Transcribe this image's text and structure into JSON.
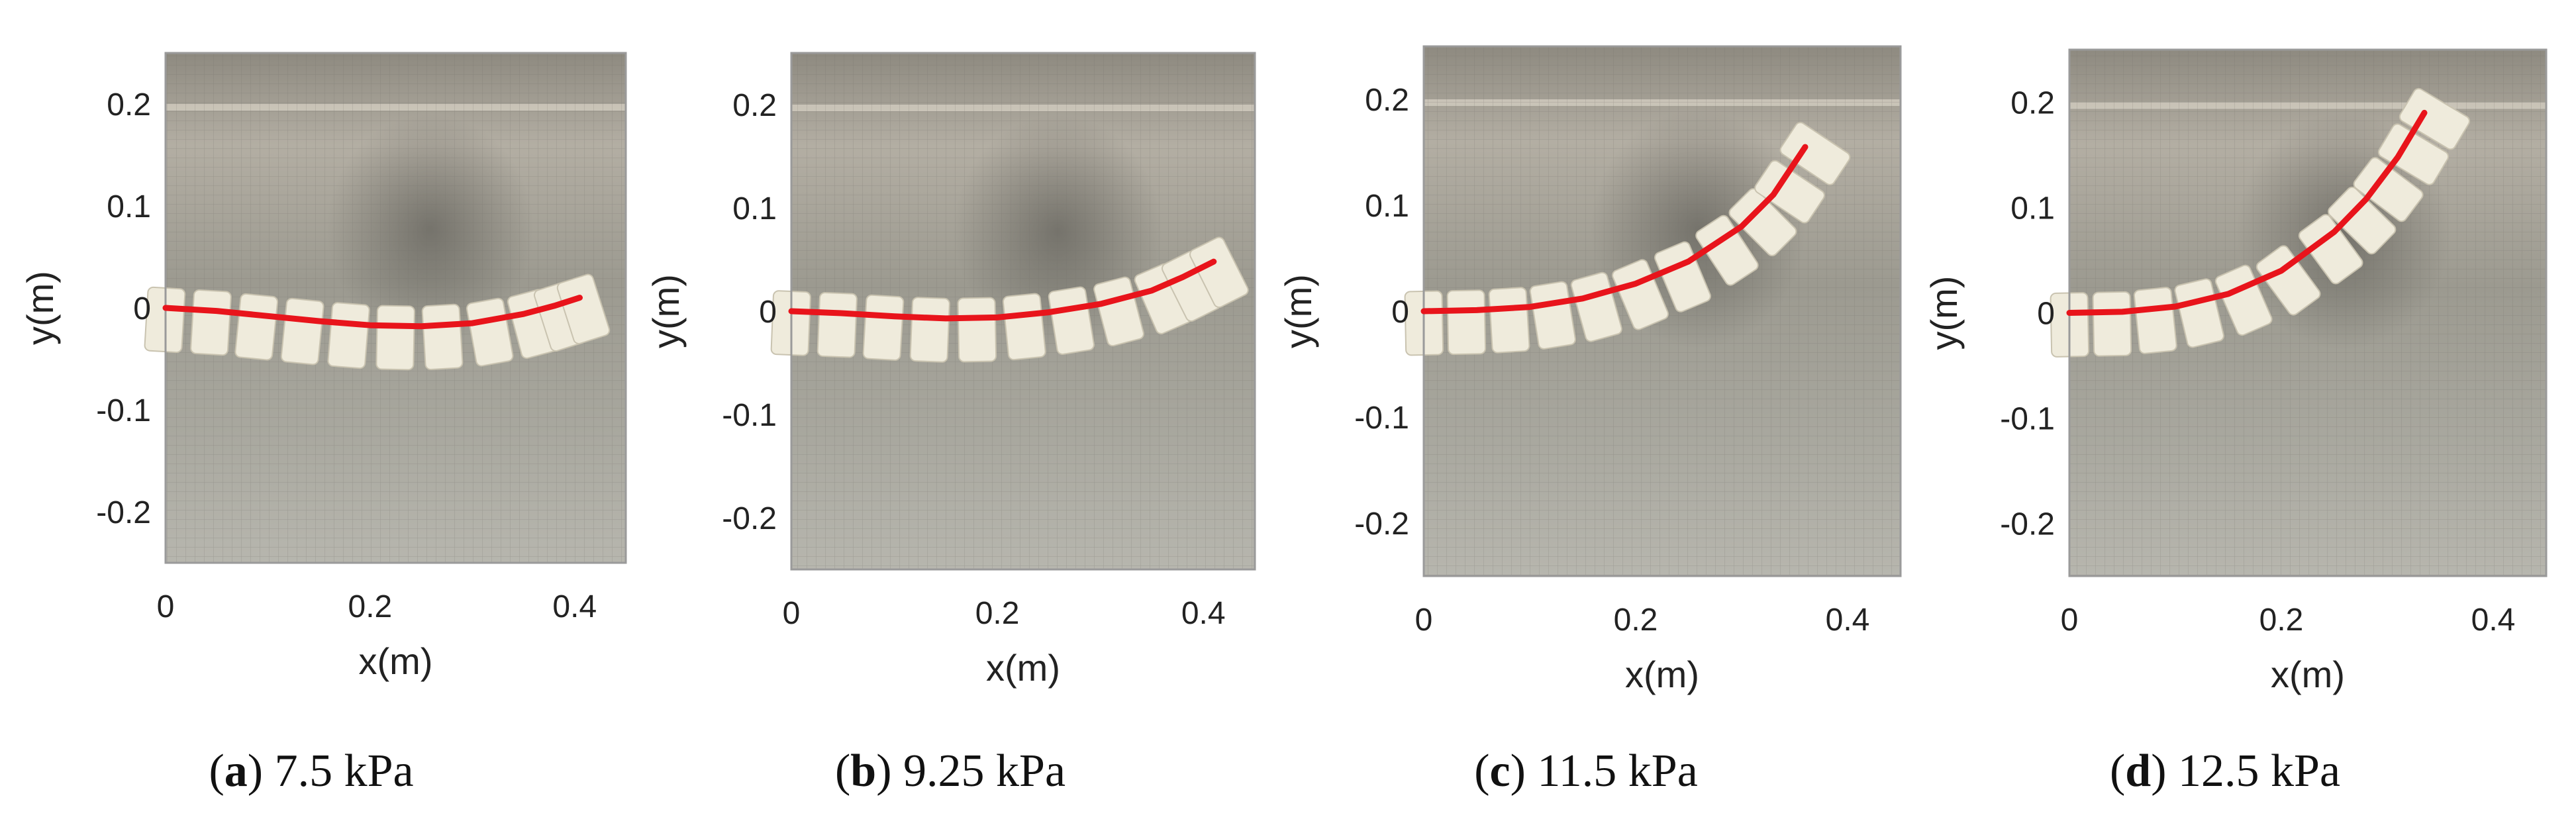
{
  "chart_data": [
    {
      "type": "line",
      "caption_letter": "a",
      "caption_text": "7.5 kPa",
      "xlabel": "x(m)",
      "ylabel": "y(m)",
      "xlim": [
        0,
        0.45
      ],
      "ylim": [
        -0.25,
        0.25
      ],
      "xticks": [
        "0",
        "0.2",
        "0.4"
      ],
      "yticks": [
        "0.2",
        "0.1",
        "0",
        "-0.1",
        "-0.2"
      ],
      "series": [
        {
          "color": "#e8141b",
          "x": [
            0,
            0.05,
            0.1,
            0.15,
            0.2,
            0.25,
            0.3,
            0.35,
            0.38,
            0.405
          ],
          "y": [
            0,
            -0.003,
            -0.008,
            -0.013,
            -0.017,
            -0.018,
            -0.015,
            -0.006,
            0.002,
            0.01
          ]
        }
      ]
    },
    {
      "type": "line",
      "caption_letter": "b",
      "caption_text": "9.25 kPa",
      "xlabel": "x(m)",
      "ylabel": "y(m)",
      "xlim": [
        0,
        0.45
      ],
      "ylim": [
        -0.25,
        0.25
      ],
      "xticks": [
        "0",
        "0.2",
        "0.4"
      ],
      "yticks": [
        "0.2",
        "0.1",
        "0",
        "-0.1",
        "-0.2"
      ],
      "series": [
        {
          "color": "#e8141b",
          "x": [
            0,
            0.05,
            0.1,
            0.15,
            0.2,
            0.25,
            0.3,
            0.35,
            0.38,
            0.41
          ],
          "y": [
            0,
            -0.002,
            -0.005,
            -0.007,
            -0.006,
            -0.001,
            0.007,
            0.02,
            0.033,
            0.048
          ]
        }
      ]
    },
    {
      "type": "line",
      "caption_letter": "c",
      "caption_text": "11.5 kPa",
      "xlabel": "x(m)",
      "ylabel": "y(m)",
      "xlim": [
        0,
        0.45
      ],
      "ylim": [
        -0.25,
        0.25
      ],
      "xticks": [
        "0",
        "0.2",
        "0.4"
      ],
      "yticks": [
        "0.2",
        "0.1",
        "0",
        "-0.1",
        "-0.2"
      ],
      "series": [
        {
          "color": "#e8141b",
          "x": [
            0,
            0.05,
            0.1,
            0.15,
            0.2,
            0.25,
            0.3,
            0.33,
            0.36
          ],
          "y": [
            0,
            0.001,
            0.004,
            0.012,
            0.026,
            0.047,
            0.08,
            0.11,
            0.155
          ]
        }
      ]
    },
    {
      "type": "line",
      "caption_letter": "d",
      "caption_text": "12.5 kPa",
      "xlabel": "x(m)",
      "ylabel": "y(m)",
      "xlim": [
        0,
        0.45
      ],
      "ylim": [
        -0.25,
        0.25
      ],
      "xticks": [
        "0",
        "0.2",
        "0.4"
      ],
      "yticks": [
        "0.2",
        "0.1",
        "0",
        "-0.1",
        "-0.2"
      ],
      "series": [
        {
          "color": "#e8141b",
          "x": [
            0,
            0.05,
            0.1,
            0.15,
            0.2,
            0.25,
            0.28,
            0.31,
            0.335
          ],
          "y": [
            0,
            0.001,
            0.006,
            0.018,
            0.04,
            0.077,
            0.108,
            0.148,
            0.19
          ]
        }
      ]
    }
  ]
}
